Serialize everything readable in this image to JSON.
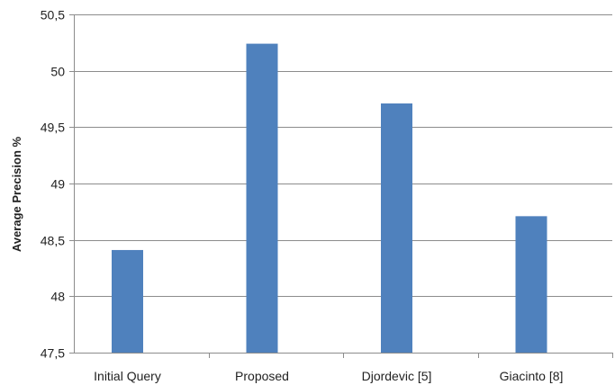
{
  "chart_data": {
    "type": "bar",
    "categories": [
      "Initial Query",
      "Proposed",
      "Djordevic [5]",
      "Giacinto [8]"
    ],
    "values": [
      48.41,
      50.24,
      49.71,
      48.71
    ],
    "title": "",
    "xlabel": "",
    "ylabel": "Average Precision %",
    "ylim": [
      47.5,
      50.5
    ],
    "yticks": [
      47.5,
      48,
      48.5,
      49,
      49.5,
      50,
      50.5
    ],
    "ytick_labels": [
      "47,5",
      "48",
      "48,5",
      "49",
      "49,5",
      "50",
      "50,5"
    ],
    "grid": true,
    "legend": "none",
    "bar_color": "#4f81bd"
  }
}
